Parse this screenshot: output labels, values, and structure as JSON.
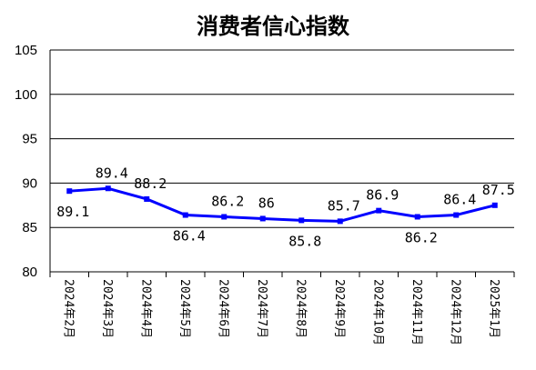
{
  "chart_data": {
    "type": "line",
    "title": "消费者信心指数",
    "categories": [
      "2024年2月",
      "2024年3月",
      "2024年4月",
      "2024年5月",
      "2024年6月",
      "2024年7月",
      "2024年8月",
      "2024年9月",
      "2024年10月",
      "2024年11月",
      "2024年12月",
      "2025年1月"
    ],
    "values": [
      89.1,
      89.4,
      88.2,
      86.4,
      86.2,
      86,
      85.8,
      85.7,
      86.9,
      86.2,
      86.4,
      87.5
    ],
    "color": "#0000ff",
    "ylim": [
      80,
      105
    ],
    "yticks": [
      80,
      85,
      90,
      95,
      100,
      105
    ],
    "grid": true
  }
}
